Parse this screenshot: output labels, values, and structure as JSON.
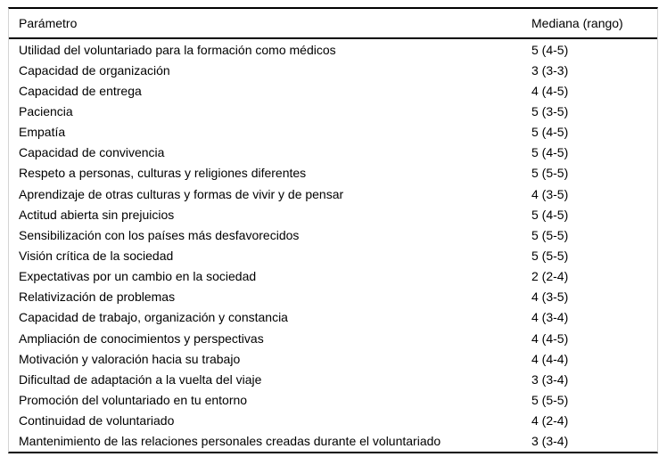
{
  "table": {
    "columns": {
      "parameter": "Parámetro",
      "median": "Mediana (rango)"
    },
    "rows": [
      {
        "parameter": "Utilidad del voluntariado para la formación como médicos",
        "median": "5 (4-5)"
      },
      {
        "parameter": "Capacidad de organización",
        "median": "3 (3-3)"
      },
      {
        "parameter": "Capacidad de entrega",
        "median": "4 (4-5)"
      },
      {
        "parameter": "Paciencia",
        "median": "5 (3-5)"
      },
      {
        "parameter": "Empatía",
        "median": "5 (4-5)"
      },
      {
        "parameter": "Capacidad de convivencia",
        "median": "5 (4-5)"
      },
      {
        "parameter": "Respeto a personas, culturas y religiones diferentes",
        "median": "5 (5-5)"
      },
      {
        "parameter": "Aprendizaje de otras culturas y formas de vivir y de pensar",
        "median": "4 (3-5)"
      },
      {
        "parameter": "Actitud abierta sin prejuicios",
        "median": "5 (4-5)"
      },
      {
        "parameter": "Sensibilización con los países más desfavorecidos",
        "median": "5 (5-5)"
      },
      {
        "parameter": "Visión crítica de la sociedad",
        "median": "5 (5-5)"
      },
      {
        "parameter": "Expectativas por un cambio en la sociedad",
        "median": "2 (2-4)"
      },
      {
        "parameter": "Relativización de problemas",
        "median": "4 (3-5)"
      },
      {
        "parameter": "Capacidad de trabajo, organización y constancia",
        "median": "4 (3-4)"
      },
      {
        "parameter": "Ampliación de conocimientos y perspectivas",
        "median": "4 (4-5)"
      },
      {
        "parameter": "Motivación y valoración hacia su trabajo",
        "median": "4 (4-4)"
      },
      {
        "parameter": "Dificultad de adaptación a la vuelta del viaje",
        "median": "3 (3-4)"
      },
      {
        "parameter": "Promoción del voluntariado en tu entorno",
        "median": "5 (5-5)"
      },
      {
        "parameter": "Continuidad de voluntariado",
        "median": "4 (2-4)"
      },
      {
        "parameter": "Mantenimiento de las relaciones personales creadas durante el voluntariado",
        "median": "3 (3-4)"
      }
    ]
  },
  "colors": {
    "background": "#ffffff",
    "text": "#000000",
    "rule": "#000000",
    "edge_line": "#d4d4d4"
  }
}
